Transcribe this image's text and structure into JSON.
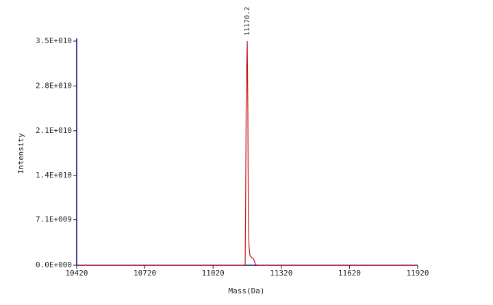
{
  "chart_data": {
    "type": "line",
    "x_label": "Mass(Da)",
    "y_label": "Intensity",
    "x": [
      10420,
      11155,
      11161,
      11163,
      11166,
      11170.2,
      11173,
      11175,
      11178,
      11182,
      11190,
      11198,
      11206,
      11212,
      11920
    ],
    "values": [
      0,
      0,
      0,
      9000000000,
      28000000000,
      35000000000,
      24000000000,
      8000000000,
      3000000000,
      1500000000,
      1200000000,
      1000000000,
      200000000,
      0,
      0
    ],
    "color": "#cc1010",
    "axis_color": "#000080",
    "xlim": [
      10420,
      11920
    ],
    "xticks": [
      10420,
      10720,
      11020,
      11320,
      11620,
      11920
    ],
    "ylim": [
      0,
      35000000000
    ],
    "yticks": [
      {
        "value": 0,
        "label": "0.0E+000"
      },
      {
        "value": 7100000000,
        "label": "7.1E+009"
      },
      {
        "value": 14000000000,
        "label": "1.4E+010"
      },
      {
        "value": 21000000000,
        "label": "2.1E+010"
      },
      {
        "value": 28000000000,
        "label": "2.8E+010"
      },
      {
        "value": 35000000000,
        "label": "3.5E+010"
      }
    ],
    "annotations": [
      {
        "x": 11170.2,
        "y": 35000000000,
        "text": "11170.2"
      }
    ]
  }
}
